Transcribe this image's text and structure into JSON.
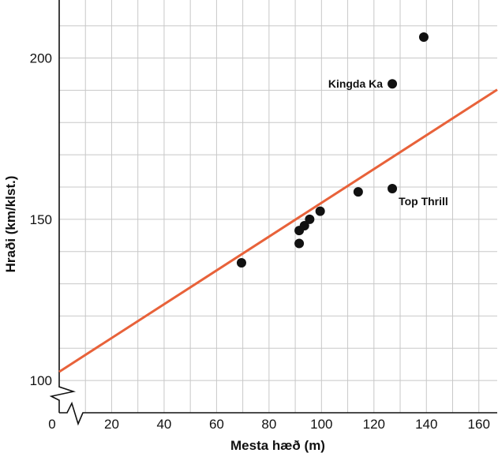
{
  "chart_data": {
    "type": "scatter",
    "title": "",
    "xlabel": "Mesta hæð (m)",
    "ylabel": "Hraði (km/klst.)",
    "xlim": [
      0,
      167
    ],
    "ylim": [
      90,
      218
    ],
    "x_ticks": [
      0,
      20,
      40,
      60,
      80,
      100,
      120,
      140,
      160
    ],
    "x_tick_labels": [
      "0",
      "20",
      "40",
      "60",
      "80",
      "100",
      "120",
      "140",
      "160"
    ],
    "y_ticks": [
      100,
      150,
      200
    ],
    "y_tick_labels": [
      "100",
      "150",
      "200"
    ],
    "axis_break": true,
    "grid": true,
    "points": [
      {
        "x": 69.5,
        "y": 136.5
      },
      {
        "x": 91.5,
        "y": 142.5
      },
      {
        "x": 91.5,
        "y": 146.5
      },
      {
        "x": 93.5,
        "y": 148
      },
      {
        "x": 95.5,
        "y": 150
      },
      {
        "x": 99.5,
        "y": 152.5
      },
      {
        "x": 114.0,
        "y": 158.5
      },
      {
        "x": 127.0,
        "y": 159.5
      },
      {
        "x": 127.0,
        "y": 192.0
      },
      {
        "x": 139.0,
        "y": 206.5
      }
    ],
    "trendline": {
      "x": [
        0,
        167
      ],
      "y": [
        102.7,
        190.2
      ],
      "color": "#e8623a"
    },
    "annotations": [
      {
        "text": "Kingda Ka",
        "x": 127.0,
        "y": 192.0
      },
      {
        "text": "Top Thrill",
        "x": 127.0,
        "y": 159.5
      }
    ],
    "point_color": "#111111",
    "grid_color": "#c8c8c8"
  }
}
